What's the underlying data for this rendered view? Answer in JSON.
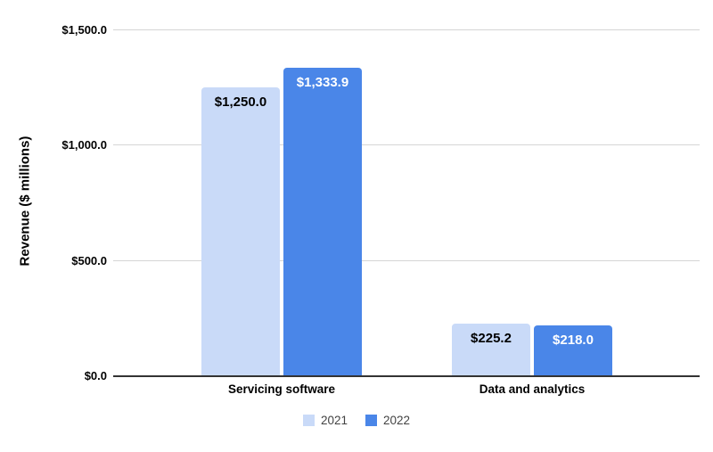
{
  "chart_data": {
    "type": "bar",
    "title": "",
    "ylabel": "Revenue ($ millions)",
    "xlabel": "",
    "categories": [
      "Servicing software",
      "Data and analytics"
    ],
    "series": [
      {
        "name": "2021",
        "color": "#c9daf8",
        "label_color": "#000000",
        "values": [
          1250.0,
          225.2
        ],
        "value_labels": [
          "$1,250.0",
          "$225.2"
        ]
      },
      {
        "name": "2022",
        "color": "#4a86e8",
        "label_color": "#ffffff",
        "values": [
          1333.9,
          218.0
        ],
        "value_labels": [
          "$1,333.9",
          "$218.0"
        ]
      }
    ],
    "yticks": [
      "$0.0",
      "$500.0",
      "$1,000.0",
      "$1,500.0"
    ],
    "ytick_values": [
      0,
      500,
      1000,
      1500
    ],
    "ylim": [
      0,
      1500
    ],
    "grid": true,
    "legend_position": "bottom",
    "colors": {
      "gridline": "#d5d5d5",
      "axis_line": "#333333",
      "tick_text": "#000000",
      "legend_text": "#424242",
      "background": "#ffffff"
    }
  }
}
